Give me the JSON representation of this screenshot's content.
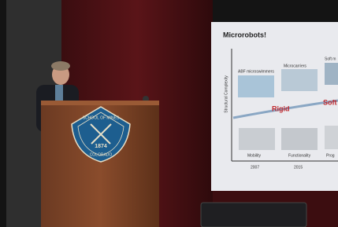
{
  "slide": {
    "title": "Microrobots!",
    "y_axis_label": "Structural Complexity",
    "items": [
      "ABF microswimmers",
      "Microcarriers",
      "Soft m"
    ],
    "groups": [
      "Rigid",
      "Soft"
    ],
    "features": [
      "Mobility",
      "Functionality",
      "Prog"
    ],
    "years": [
      "2007",
      "2015"
    ]
  },
  "podium_logo": {
    "top": "SCHOOL OF MINES",
    "year": "1874",
    "bottom": "COLORADO"
  }
}
